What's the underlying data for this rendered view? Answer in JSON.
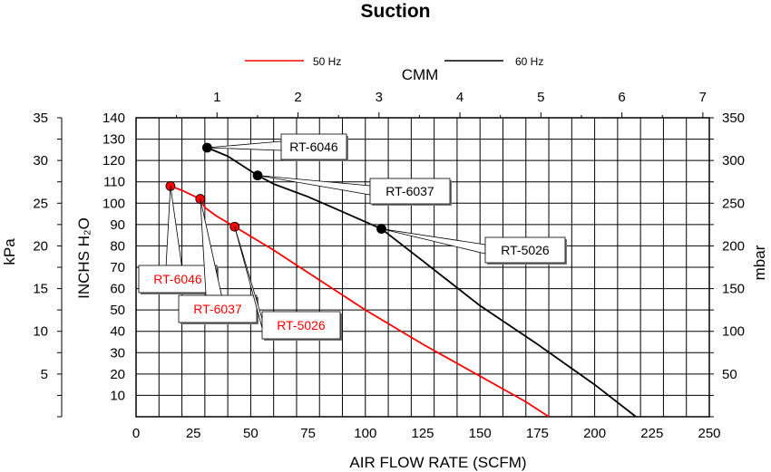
{
  "chart_data": {
    "type": "line",
    "title": "Suction",
    "xlabel": "AIR FLOW RATE (SCFM)",
    "x2label": "CMM",
    "ylabel": "INCHS H₂O",
    "y_kpa_label": "kPa",
    "y_mbar_label": "mbar",
    "xlim": [
      0,
      250
    ],
    "ylim": [
      0,
      140
    ],
    "cmm_lim": [
      0,
      7.08
    ],
    "x_ticks": [
      "0",
      "25",
      "50",
      "75",
      "100",
      "125",
      "150",
      "175",
      "200",
      "225",
      "250"
    ],
    "x2_ticks": [
      "1",
      "2",
      "3",
      "4",
      "5",
      "6",
      "7"
    ],
    "y_ticks": [
      "10",
      "20",
      "30",
      "40",
      "50",
      "60",
      "70",
      "80",
      "90",
      "100",
      "110",
      "120",
      "130",
      "140"
    ],
    "kpa_ticks": [
      "5",
      "10",
      "15",
      "20",
      "25",
      "30",
      "35"
    ],
    "mbar_ticks": [
      "50",
      "100",
      "150",
      "200",
      "250",
      "300",
      "350"
    ],
    "grid": true,
    "legend": {
      "position": "top-center"
    },
    "series": [
      {
        "name": "50 Hz",
        "color": "#ff0000",
        "x": [
          15,
          20,
          24,
          28,
          30,
          35,
          43,
          60,
          80,
          100,
          125,
          150,
          170,
          180
        ],
        "y": [
          108,
          106,
          104,
          102,
          98,
          94,
          89,
          78,
          64,
          50,
          34,
          19,
          7,
          0
        ],
        "points": [
          {
            "label": "RT-6046",
            "x": 15,
            "y": 108
          },
          {
            "label": "RT-6037",
            "x": 28,
            "y": 102
          },
          {
            "label": "RT-5026",
            "x": 43,
            "y": 89
          }
        ]
      },
      {
        "name": "60 Hz",
        "color": "#000000",
        "x": [
          31,
          40,
          53,
          60,
          75,
          90,
          107,
          125,
          150,
          175,
          200,
          218
        ],
        "y": [
          126,
          122,
          113,
          109,
          103,
          96,
          88,
          73,
          52,
          34,
          15,
          0
        ],
        "points": [
          {
            "label": "RT-6046",
            "x": 31,
            "y": 126
          },
          {
            "label": "RT-6037",
            "x": 53,
            "y": 113
          },
          {
            "label": "RT-5026",
            "x": 107,
            "y": 88
          }
        ]
      }
    ]
  }
}
